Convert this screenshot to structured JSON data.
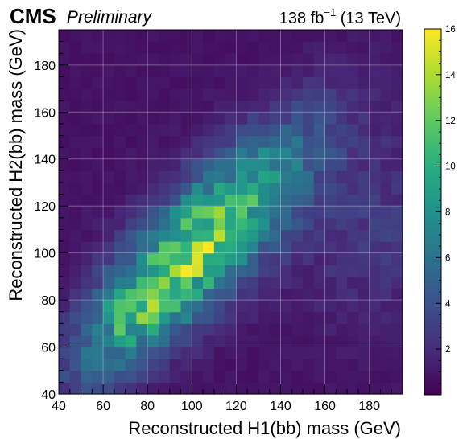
{
  "header": {
    "experiment": "CMS",
    "status": "Preliminary",
    "lumi_value": "138 fb",
    "lumi_exponent": "−1",
    "lumi_energy": " (13 TeV)"
  },
  "chart_data": {
    "type": "heatmap",
    "xlabel": "Reconstructed H1(bb) mass (GeV)",
    "ylabel": "Reconstructed H2(bb) mass (GeV)",
    "xlim": [
      40,
      195
    ],
    "ylim": [
      40,
      195
    ],
    "bin_width": 5,
    "xticks": [
      40,
      60,
      80,
      100,
      120,
      140,
      160,
      180
    ],
    "yticks": [
      40,
      60,
      80,
      100,
      120,
      140,
      160,
      180
    ],
    "colorbar": {
      "range": [
        0,
        16
      ],
      "ticks": [
        2,
        4,
        6,
        8,
        10,
        12,
        14,
        16
      ],
      "colormap": "viridis"
    },
    "grid": true,
    "peak": {
      "x": 107.5,
      "y": 102.5,
      "value": 16
    },
    "secondary_maxima": [
      {
        "x": 102.5,
        "y": 92.5,
        "value": 15
      },
      {
        "x": 77.5,
        "y": 82.5,
        "value": 12
      },
      {
        "x": 67.5,
        "y": 67.5,
        "value": 12
      }
    ],
    "distribution_summary": "Events concentrate along the diagonal H1 ≈ H2, peaking near (107, 102) GeV at about 16 events per 5×5 GeV bin, falling to roughly 1–2 events per bin toward the upper-left and lower-right corners."
  }
}
